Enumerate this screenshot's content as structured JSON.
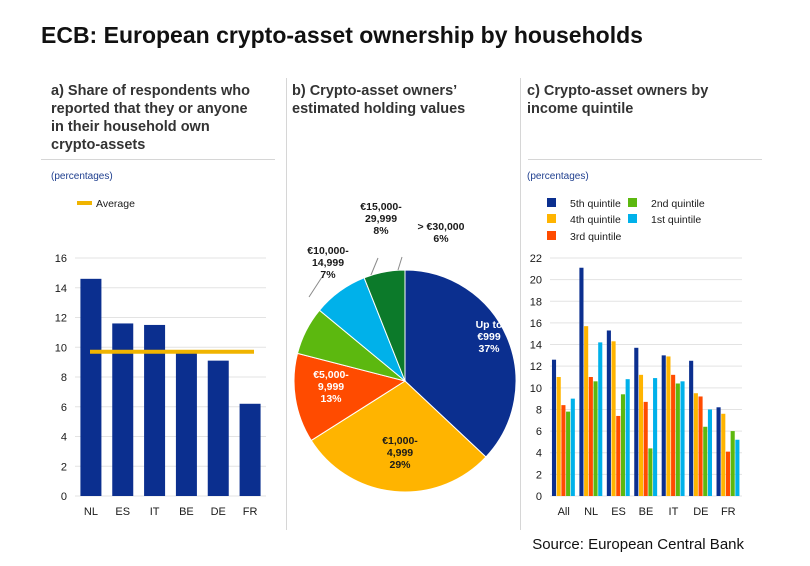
{
  "title": "ECB: European crypto-asset ownership by households",
  "source": "Source: European Central Bank",
  "colors": {
    "navy": "#0b2f8f",
    "orange": "#f0b400",
    "yellow": "#ffb400",
    "red": "#ff4b00",
    "green": "#5cb80f",
    "lightblue": "#00b1ea",
    "darkgreen": "#0c7a2a"
  },
  "chart_data": [
    {
      "type": "bar",
      "title": "a) Share of respondents who reported that they or anyone in their household own crypto-assets",
      "title_lines": [
        "a) Share of respondents who",
        "reported that they or anyone",
        "in their household own",
        "crypto-assets"
      ],
      "units": "(percentages)",
      "categories": [
        "NL",
        "ES",
        "IT",
        "BE",
        "DE",
        "FR"
      ],
      "values": [
        14.6,
        11.6,
        11.5,
        9.7,
        9.1,
        6.2
      ],
      "reference_line": {
        "name": "Average",
        "value": 9.7
      },
      "ylim": [
        0,
        16
      ],
      "yticks": [
        0,
        2,
        4,
        6,
        8,
        10,
        12,
        14,
        16
      ],
      "grid": true,
      "legend": "top-left"
    },
    {
      "type": "pie",
      "title": "b) Crypto-asset owners' estimated holding values",
      "title_lines": [
        "b) Crypto-asset owners’",
        "estimated holding values"
      ],
      "slices": [
        {
          "label_lines": [
            "Up to",
            "€999",
            "37%"
          ],
          "value": 37,
          "color": "#0b2f8f"
        },
        {
          "label_lines": [
            "€1,000-",
            "4,999",
            "29%"
          ],
          "value": 29,
          "color": "#ffb400"
        },
        {
          "label_lines": [
            "€5,000-",
            "9,999",
            "13%"
          ],
          "value": 13,
          "color": "#ff4b00"
        },
        {
          "label_lines": [
            "€10,000-",
            "14,999",
            "7%"
          ],
          "value": 7,
          "color": "#5cb80f"
        },
        {
          "label_lines": [
            "€15,000-",
            "29,999",
            "8%"
          ],
          "value": 8,
          "color": "#00b1ea"
        },
        {
          "label_lines": [
            "> €30,000",
            "6%"
          ],
          "value": 6,
          "color": "#0c7a2a"
        }
      ]
    },
    {
      "type": "bar",
      "title": "c) Crypto-asset owners by income quintile",
      "title_lines": [
        "c) Crypto-asset owners by",
        "income quintile"
      ],
      "units": "(percentages)",
      "categories": [
        "All",
        "NL",
        "ES",
        "BE",
        "IT",
        "DE",
        "FR"
      ],
      "series": [
        {
          "name": "5th quintile",
          "color": "#0b2f8f",
          "values": [
            12.6,
            21.1,
            15.3,
            13.7,
            13.0,
            12.5,
            8.2
          ]
        },
        {
          "name": "4th quintile",
          "color": "#ffb400",
          "values": [
            11.0,
            15.7,
            14.3,
            11.2,
            12.9,
            9.5,
            7.6
          ]
        },
        {
          "name": "3rd quintile",
          "color": "#ff4b00",
          "values": [
            8.4,
            11.0,
            7.4,
            8.7,
            11.2,
            9.2,
            4.1
          ]
        },
        {
          "name": "2nd quintile",
          "color": "#5cb80f",
          "values": [
            7.8,
            10.6,
            9.4,
            4.4,
            10.4,
            6.4,
            6.0
          ]
        },
        {
          "name": "1st quintile",
          "color": "#00b1ea",
          "values": [
            9.0,
            14.2,
            10.8,
            10.9,
            10.6,
            8.0,
            5.2
          ]
        }
      ],
      "ylim": [
        0,
        22
      ],
      "yticks": [
        0,
        2,
        4,
        6,
        8,
        10,
        12,
        14,
        16,
        18,
        20,
        22
      ],
      "grid": true,
      "legend": "top"
    }
  ]
}
